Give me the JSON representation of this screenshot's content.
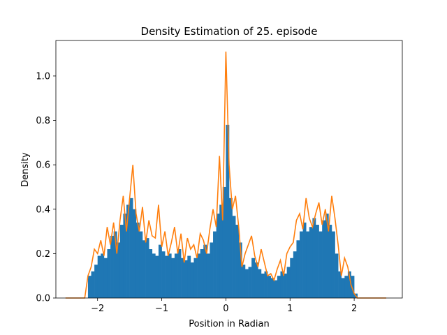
{
  "chart_data": {
    "type": "bar",
    "title": "Density Estimation of 25. episode",
    "xlabel": "Position in Radian",
    "ylabel": "Density",
    "xlim": [
      -2.65,
      2.75
    ],
    "ylim": [
      0.0,
      1.16
    ],
    "xticks": [
      -2,
      -1,
      0,
      1,
      2
    ],
    "yticks": [
      0.0,
      0.2,
      0.4,
      0.6,
      0.8,
      1.0
    ],
    "xtick_labels": [
      "−2",
      "−1",
      "0",
      "1",
      "2"
    ],
    "ytick_labels": [
      "0.0",
      "0.2",
      "0.4",
      "0.6",
      "0.8",
      "1.0"
    ],
    "grid": false,
    "colors": {
      "histogram": "#1f77b4",
      "kde": "#ff7f0e",
      "axes": "#000000"
    },
    "series": [
      {
        "kind": "histogram",
        "x": [
          -2.15,
          -2.1,
          -2.05,
          -2.0,
          -1.95,
          -1.9,
          -1.85,
          -1.8,
          -1.75,
          -1.7,
          -1.65,
          -1.6,
          -1.55,
          -1.5,
          -1.45,
          -1.4,
          -1.35,
          -1.3,
          -1.25,
          -1.2,
          -1.15,
          -1.1,
          -1.05,
          -1.0,
          -0.95,
          -0.9,
          -0.85,
          -0.8,
          -0.75,
          -0.7,
          -0.65,
          -0.6,
          -0.55,
          -0.5,
          -0.45,
          -0.4,
          -0.35,
          -0.3,
          -0.25,
          -0.2,
          -0.15,
          -0.1,
          -0.05,
          0.0,
          0.05,
          0.1,
          0.15,
          0.2,
          0.25,
          0.3,
          0.35,
          0.4,
          0.45,
          0.5,
          0.55,
          0.6,
          0.65,
          0.7,
          0.75,
          0.8,
          0.85,
          0.9,
          0.95,
          1.0,
          1.05,
          1.1,
          1.15,
          1.2,
          1.25,
          1.3,
          1.35,
          1.4,
          1.45,
          1.5,
          1.55,
          1.6,
          1.65,
          1.7,
          1.75,
          1.8,
          1.85,
          1.9,
          1.95,
          2.0
        ],
        "values": [
          0.1,
          0.12,
          0.15,
          0.19,
          0.2,
          0.18,
          0.22,
          0.28,
          0.3,
          0.25,
          0.33,
          0.38,
          0.42,
          0.45,
          0.4,
          0.34,
          0.3,
          0.26,
          0.27,
          0.22,
          0.2,
          0.19,
          0.24,
          0.21,
          0.19,
          0.2,
          0.18,
          0.2,
          0.22,
          0.18,
          0.17,
          0.19,
          0.16,
          0.18,
          0.2,
          0.22,
          0.24,
          0.2,
          0.25,
          0.3,
          0.38,
          0.42,
          0.5,
          0.78,
          0.45,
          0.37,
          0.33,
          0.25,
          0.15,
          0.13,
          0.14,
          0.18,
          0.16,
          0.13,
          0.11,
          0.12,
          0.1,
          0.09,
          0.08,
          0.1,
          0.12,
          0.11,
          0.14,
          0.18,
          0.21,
          0.26,
          0.3,
          0.34,
          0.3,
          0.32,
          0.36,
          0.33,
          0.3,
          0.35,
          0.38,
          0.33,
          0.3,
          0.2,
          0.12,
          0.09,
          0.1,
          0.12,
          0.1,
          0.02
        ]
      },
      {
        "kind": "kde",
        "x": [
          -2.5,
          -2.2,
          -2.15,
          -2.1,
          -2.05,
          -2.0,
          -1.95,
          -1.9,
          -1.85,
          -1.8,
          -1.75,
          -1.7,
          -1.65,
          -1.6,
          -1.55,
          -1.5,
          -1.45,
          -1.4,
          -1.35,
          -1.3,
          -1.25,
          -1.2,
          -1.15,
          -1.1,
          -1.05,
          -1.0,
          -0.95,
          -0.9,
          -0.85,
          -0.8,
          -0.75,
          -0.7,
          -0.65,
          -0.6,
          -0.55,
          -0.5,
          -0.45,
          -0.4,
          -0.35,
          -0.3,
          -0.25,
          -0.2,
          -0.15,
          -0.1,
          -0.05,
          0.0,
          0.05,
          0.1,
          0.15,
          0.2,
          0.25,
          0.3,
          0.35,
          0.4,
          0.45,
          0.5,
          0.55,
          0.6,
          0.65,
          0.7,
          0.75,
          0.8,
          0.85,
          0.9,
          0.95,
          1.0,
          1.05,
          1.1,
          1.15,
          1.2,
          1.25,
          1.3,
          1.35,
          1.4,
          1.45,
          1.5,
          1.55,
          1.6,
          1.65,
          1.7,
          1.75,
          1.8,
          1.85,
          1.9,
          1.95,
          2.0,
          2.05,
          2.5
        ],
        "values": [
          0.0,
          0.0,
          0.1,
          0.14,
          0.22,
          0.2,
          0.26,
          0.19,
          0.32,
          0.24,
          0.34,
          0.2,
          0.35,
          0.46,
          0.3,
          0.45,
          0.6,
          0.38,
          0.3,
          0.41,
          0.25,
          0.35,
          0.28,
          0.27,
          0.42,
          0.23,
          0.3,
          0.19,
          0.25,
          0.32,
          0.2,
          0.29,
          0.16,
          0.27,
          0.22,
          0.24,
          0.18,
          0.29,
          0.26,
          0.2,
          0.31,
          0.4,
          0.32,
          0.64,
          0.35,
          1.11,
          0.6,
          0.4,
          0.46,
          0.32,
          0.14,
          0.2,
          0.24,
          0.28,
          0.19,
          0.14,
          0.22,
          0.16,
          0.1,
          0.11,
          0.08,
          0.13,
          0.17,
          0.1,
          0.2,
          0.23,
          0.25,
          0.35,
          0.38,
          0.31,
          0.45,
          0.36,
          0.32,
          0.38,
          0.43,
          0.33,
          0.4,
          0.3,
          0.46,
          0.36,
          0.24,
          0.1,
          0.18,
          0.14,
          0.06,
          0.02,
          0.0,
          0.0
        ]
      }
    ]
  }
}
